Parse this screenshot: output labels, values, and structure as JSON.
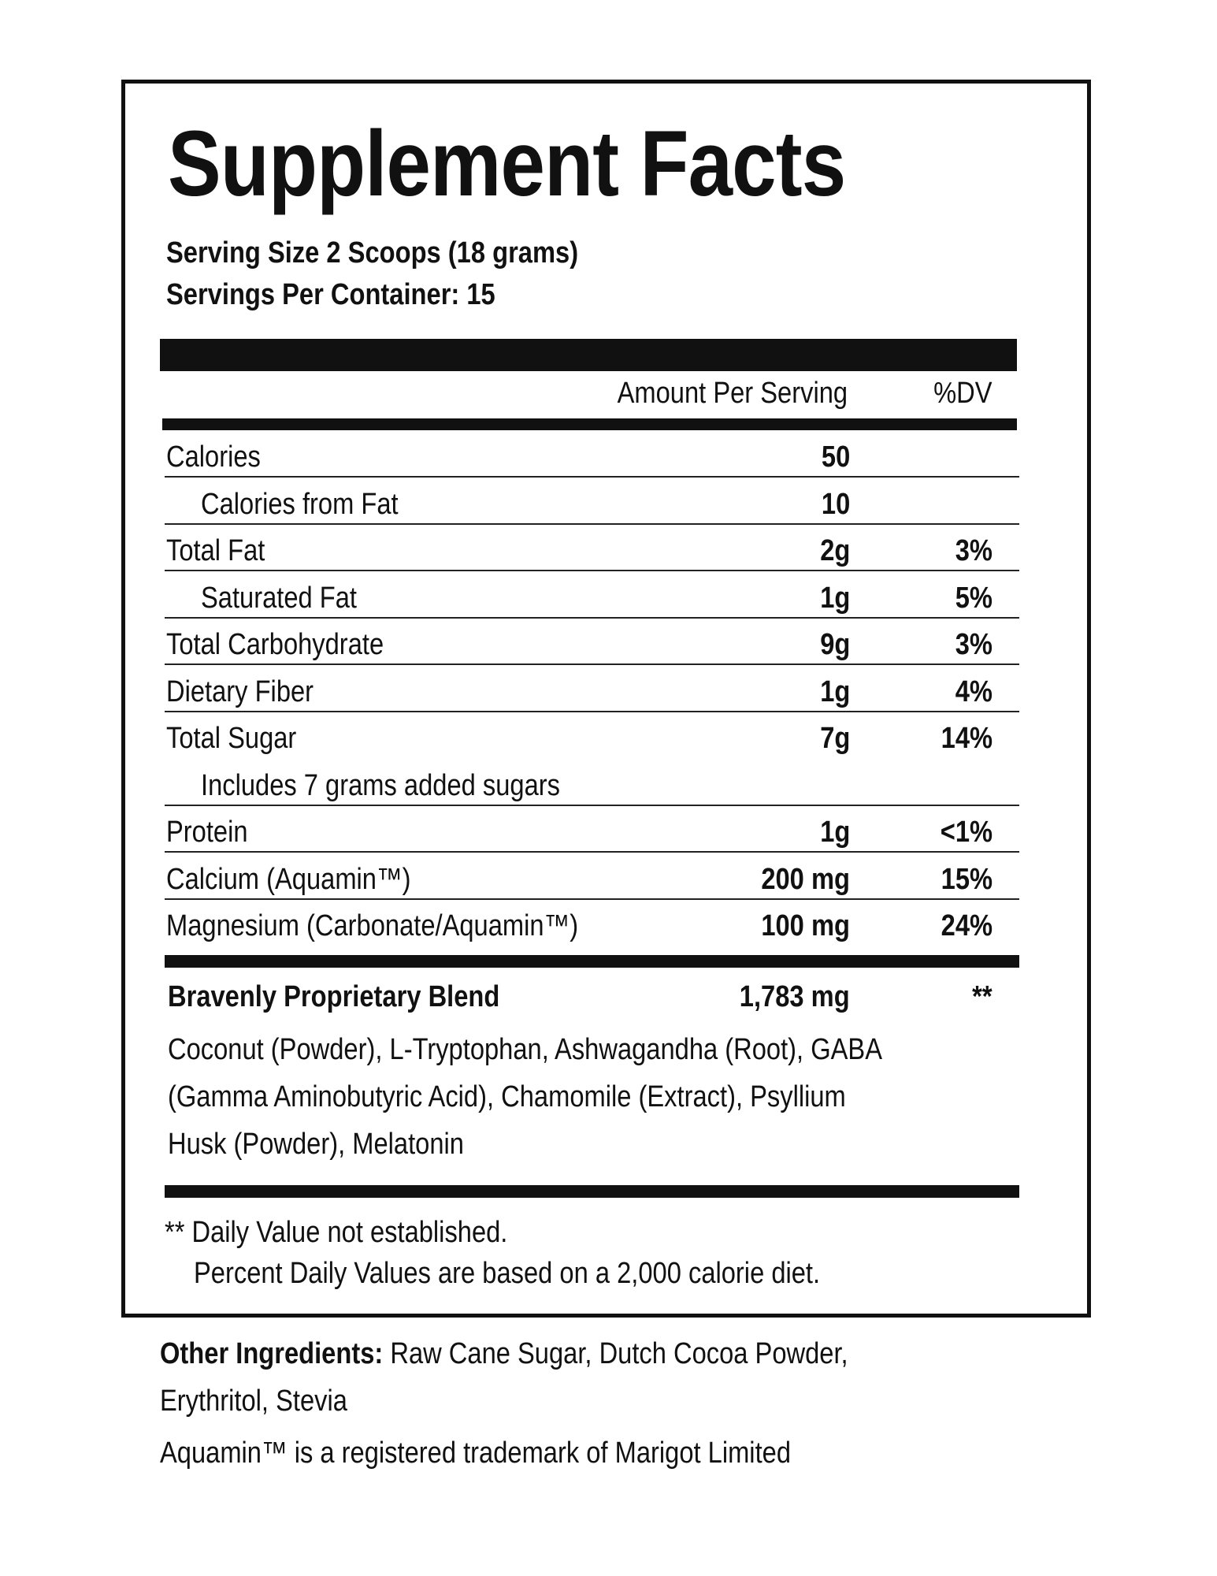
{
  "title": "Supplement Facts",
  "serving_size": "Serving Size 2 Scoops (18 grams)",
  "servings_per_container": "Servings Per Container: 15",
  "header": {
    "amount": "Amount Per Serving",
    "dv": "%DV"
  },
  "rows": [
    {
      "name": "Calories",
      "amount": "50",
      "dv": ""
    },
    {
      "name": "Calories from Fat",
      "amount": "10",
      "dv": ""
    },
    {
      "name": "Total Fat",
      "amount": "2g",
      "dv": "3%"
    },
    {
      "name": "Saturated Fat",
      "amount": "1g",
      "dv": "5%"
    },
    {
      "name": "Total Carbohydrate",
      "amount": "9g",
      "dv": "3%"
    },
    {
      "name": "Dietary Fiber",
      "amount": "1g",
      "dv": "4%"
    },
    {
      "name": "Total Sugar",
      "amount": "7g",
      "dv": "14%"
    },
    {
      "name": "Includes 7 grams added sugars",
      "amount": "",
      "dv": ""
    },
    {
      "name": "Protein",
      "amount": "1g",
      "dv": "<1%"
    },
    {
      "name": "Calcium (Aquamin™)",
      "amount": "200 mg",
      "dv": "15%"
    },
    {
      "name": "Magnesium (Carbonate/Aquamin™)",
      "amount": "100 mg",
      "dv": "24%"
    }
  ],
  "blend": {
    "name": "Bravenly Proprietary Blend",
    "amount": "1,783 mg",
    "dv": "**",
    "lines": [
      "Coconut (Powder), L-Tryptophan, Ashwagandha (Root), GABA",
      "(Gamma Aminobutyric Acid), Chamomile (Extract), Psyllium",
      "Husk (Powder), Melatonin"
    ]
  },
  "footnote": {
    "line1": "** Daily Value not established.",
    "line2": "Percent Daily Values are based on a 2,000 calorie diet."
  },
  "other": {
    "label": "Other Ingredients:",
    "text1": " Raw Cane Sugar, Dutch Cocoa Powder,",
    "text2": "Erythritol, Stevia",
    "trademark": "Aquamin™ is a registered trademark of Marigot Limited"
  }
}
